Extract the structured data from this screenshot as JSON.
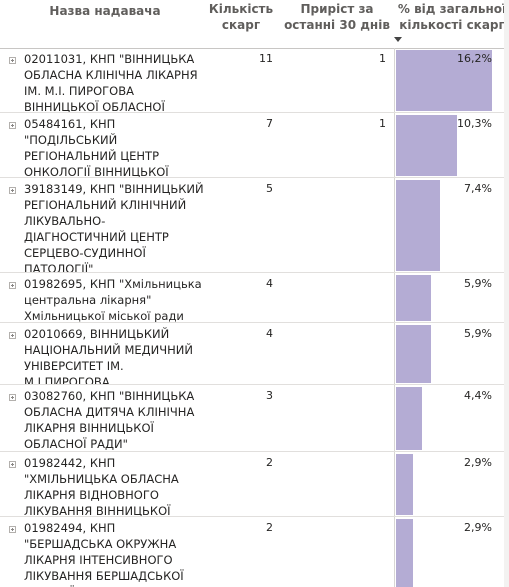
{
  "header": {
    "name_label": "Назва надавача",
    "count_label": "Кількість скарг",
    "growth_label": "Приріст за останні 30 днів",
    "pct_label": "% від загальної кількості скарг"
  },
  "rows": [
    {
      "name": "02011031, КНП \"ВІННИЦЬКА ОБЛАСНА КЛІНІЧНА ЛІКАРНЯ ІМ. М.І. ПИРОГОВА ВІННИЦЬКОЇ ОБЛАСНОЇ РАДИ\"",
      "count": "11",
      "growth": "1",
      "pct": "16,2%",
      "share": 0.162
    },
    {
      "name": "05484161, КНП \"ПОДІЛЬСЬКИЙ РЕГІОНАЛЬНИЙ ЦЕНТР ОНКОЛОГІЇ ВІННИЦЬКОЇ ОБЛАСНОЇ РАДИ\"",
      "count": "7",
      "growth": "1",
      "pct": "10,3%",
      "share": 0.103
    },
    {
      "name": "39183149, КНП \"ВІННИЦЬКИЙ РЕГІОНАЛЬНИЙ КЛІНІЧНИЙ ЛІКУВАЛЬНО-ДІАГНОСТИЧНИЙ ЦЕНТР СЕРЦЕВО-СУДИННОЇ ПАТОЛОГІЇ\"",
      "count": "5",
      "growth": "",
      "pct": "7,4%",
      "share": 0.074
    },
    {
      "name": "01982695, КНП \"Хмільницька центральна лікарня\" Хмільницької міської ради",
      "count": "4",
      "growth": "",
      "pct": "5,9%",
      "share": 0.059
    },
    {
      "name": "02010669, ВІННИЦЬКИЙ НАЦІОНАЛЬНИЙ МЕДИЧНИЙ УНІВЕРСИТЕТ ІМ. М.І.ПИРОГОВА",
      "count": "4",
      "growth": "",
      "pct": "5,9%",
      "share": 0.059
    },
    {
      "name": "03082760, КНП \"ВІННИЦЬКА ОБЛАСНА ДИТЯЧА КЛІНІЧНА ЛІКАРНЯ ВІННИЦЬКОЇ ОБЛАСНОЇ РАДИ\"",
      "count": "3",
      "growth": "",
      "pct": "4,4%",
      "share": 0.044
    },
    {
      "name": "01982442, КНП \"ХМІЛЬНИЦЬКА ОБЛАСНА ЛІКАРНЯ ВІДНОВНОГО ЛІКУВАННЯ ВІННИЦЬКОЇ ОБЛАСНОЇ РАДИ\"",
      "count": "2",
      "growth": "",
      "pct": "2,9%",
      "share": 0.029
    },
    {
      "name": "01982494, КНП \"БЕРШАДСЬКА ОКРУЖНА ЛІКАРНЯ ІНТЕНСИВНОГО ЛІКУВАННЯ БЕРШАДСЬКОЇ МІСЬКОЇ РАДИ\"",
      "count": "2",
      "growth": "",
      "pct": "2,9%",
      "share": 0.029
    }
  ]
}
